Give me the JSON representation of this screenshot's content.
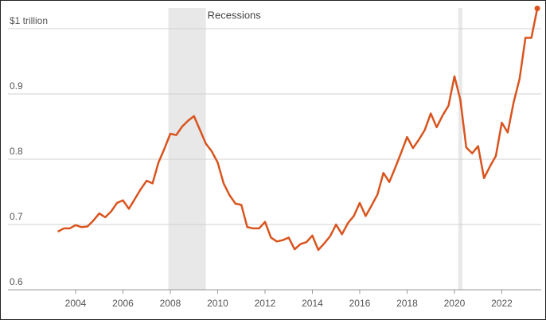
{
  "chart_data": {
    "type": "line",
    "annotation": "Recessions",
    "recessions": [
      [
        2007.917,
        2009.5
      ],
      [
        2020.167,
        2020.333
      ]
    ],
    "xlim": [
      2001,
      2023.8
    ],
    "xticks": [
      2004,
      2006,
      2008,
      2010,
      2012,
      2014,
      2016,
      2018,
      2020,
      2022
    ],
    "ylim": [
      0.6,
      1.04
    ],
    "yticks": [
      0.6,
      0.7,
      0.8,
      0.9,
      {
        "value": 1,
        "label": "$1 trillion"
      }
    ],
    "grid": true,
    "series": [
      {
        "color": "#d9541e",
        "x": [
          2003.25,
          2003.5,
          2003.75,
          2004,
          2004.25,
          2004.5,
          2004.75,
          2005,
          2005.25,
          2005.5,
          2005.75,
          2006,
          2006.25,
          2006.5,
          2006.75,
          2007,
          2007.25,
          2007.5,
          2007.75,
          2008,
          2008.25,
          2008.5,
          2008.75,
          2009,
          2009.25,
          2009.5,
          2009.75,
          2010,
          2010.25,
          2010.5,
          2010.75,
          2011,
          2011.25,
          2011.5,
          2011.75,
          2012,
          2012.25,
          2012.5,
          2012.75,
          2013,
          2013.25,
          2013.5,
          2013.75,
          2014,
          2014.25,
          2014.5,
          2014.75,
          2015,
          2015.25,
          2015.5,
          2015.75,
          2016,
          2016.25,
          2016.5,
          2016.75,
          2017,
          2017.25,
          2017.5,
          2017.75,
          2018,
          2018.25,
          2018.5,
          2018.75,
          2019,
          2019.25,
          2019.5,
          2019.75,
          2020,
          2020.25,
          2020.5,
          2020.75,
          2021,
          2021.25,
          2021.5,
          2021.75,
          2022,
          2022.25,
          2022.5,
          2022.75,
          2023,
          2023.25,
          2023.5
        ],
        "values": [
          0.689,
          0.694,
          0.694,
          0.699,
          0.696,
          0.697,
          0.706,
          0.717,
          0.711,
          0.72,
          0.733,
          0.737,
          0.724,
          0.739,
          0.754,
          0.767,
          0.763,
          0.795,
          0.816,
          0.839,
          0.837,
          0.85,
          0.859,
          0.866,
          0.845,
          0.824,
          0.812,
          0.795,
          0.763,
          0.745,
          0.732,
          0.73,
          0.696,
          0.694,
          0.694,
          0.704,
          0.68,
          0.674,
          0.676,
          0.68,
          0.662,
          0.67,
          0.673,
          0.683,
          0.661,
          0.671,
          0.682,
          0.7,
          0.685,
          0.702,
          0.713,
          0.733,
          0.713,
          0.729,
          0.746,
          0.779,
          0.765,
          0.787,
          0.81,
          0.834,
          0.817,
          0.83,
          0.845,
          0.87,
          0.849,
          0.867,
          0.882,
          0.927,
          0.891,
          0.818,
          0.809,
          0.82,
          0.771,
          0.789,
          0.805,
          0.856,
          0.841,
          0.887,
          0.923,
          0.986,
          0.986,
          1.031
        ]
      }
    ]
  }
}
